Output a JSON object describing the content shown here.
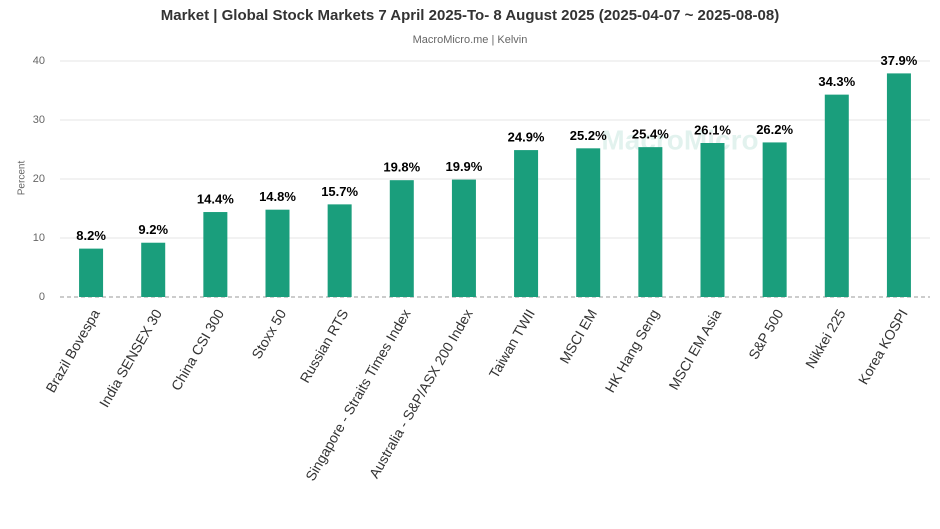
{
  "chart_data": {
    "type": "bar",
    "title": "Market | Global Stock Markets 7 April 2025-To- 8 August 2025 (2025-04-07 ~ 2025-08-08)",
    "subtitle": "MacroMicro.me | Kelvin",
    "watermark": "MacroMicro",
    "y_label": "Percent",
    "categories": [
      "Brazil Bovespa",
      "India SENSEX 30",
      "China CSI 300",
      "Stoxx 50",
      "Russian RTS",
      "Singapore - Straits Times Index",
      "Australia - S&P/ASX 200 Index",
      "Taiwan TWII",
      "MSCI EM",
      "HK Hang Seng",
      "MSCI EM Asia",
      "S&P 500",
      "Nikkei 225",
      "Korea KOSPI"
    ],
    "values": [
      8.2,
      9.2,
      14.4,
      14.8,
      15.7,
      19.8,
      19.9,
      24.9,
      25.2,
      25.4,
      26.1,
      26.2,
      34.3,
      37.9
    ],
    "value_labels": [
      "8.2%",
      "9.2%",
      "14.4%",
      "14.8%",
      "15.7%",
      "19.8%",
      "19.9%",
      "24.9%",
      "25.2%",
      "25.4%",
      "26.1%",
      "26.2%",
      "34.3%",
      "37.9%"
    ],
    "color": "#1a9e7c",
    "ylim": [
      0,
      40
    ],
    "yticks": [
      0,
      10,
      20,
      30,
      40
    ],
    "grid": true
  }
}
